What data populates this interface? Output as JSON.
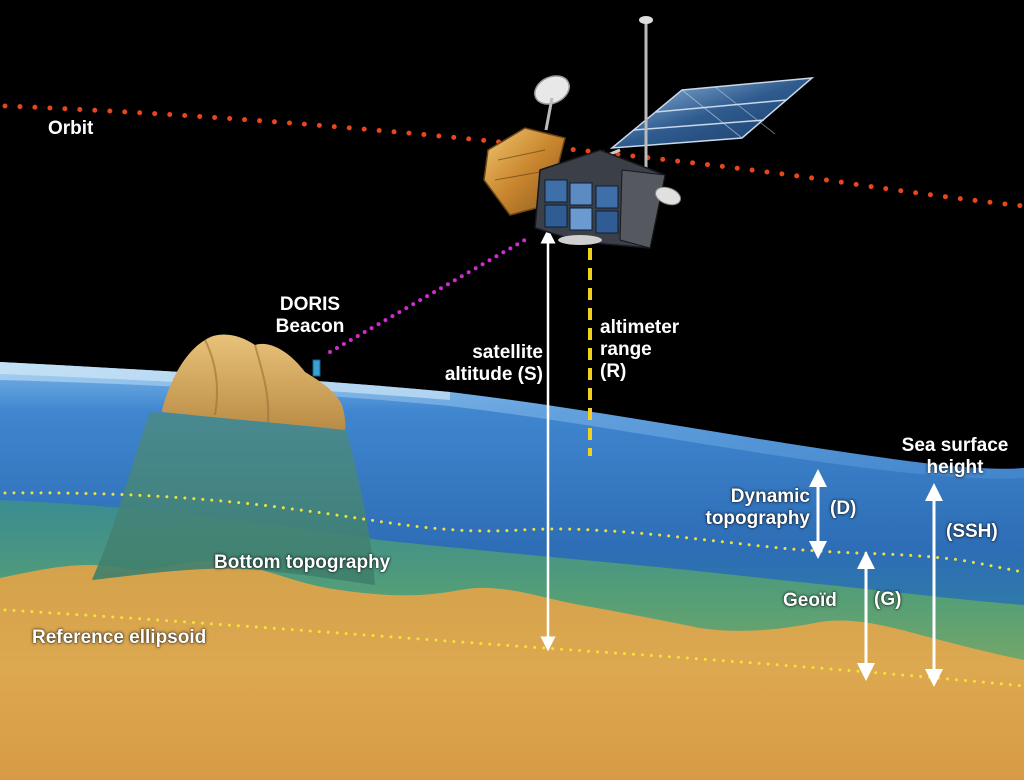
{
  "labels": {
    "orbit": "Orbit",
    "doris_line1": "DORIS",
    "doris_line2": "Beacon",
    "satellite_altitude_line1": "satellite",
    "satellite_altitude_line2": "altitude (S)",
    "altimeter_range_line1": "altimeter",
    "altimeter_range_line2": "range",
    "altimeter_range_line3": "(R)",
    "sea_surface_height_line1": "Sea surface",
    "sea_surface_height_line2": "height",
    "ssh_symbol": "(SSH)",
    "dynamic_topography_line1": "Dynamic",
    "dynamic_topography_line2": "topography",
    "dynamic_symbol": "(D)",
    "geoid": "Geoïd",
    "geoid_symbol": "(G)",
    "bottom_topography": "Bottom topography",
    "reference_ellipsoid": "Reference ellipsoid"
  },
  "colors": {
    "space": "#000000",
    "orbit_dots": "#e8461c",
    "doris_link": "#d02ad0",
    "altimeter_range": "#f2d21e",
    "geoid_dots": "#f0e040",
    "ellipsoid_dots": "#f5e23a",
    "ocean_surface": "#3a7fd0",
    "ocean_deep": "#2a6aa8",
    "seabed": "#d9a048",
    "arrows": "#ffffff"
  }
}
